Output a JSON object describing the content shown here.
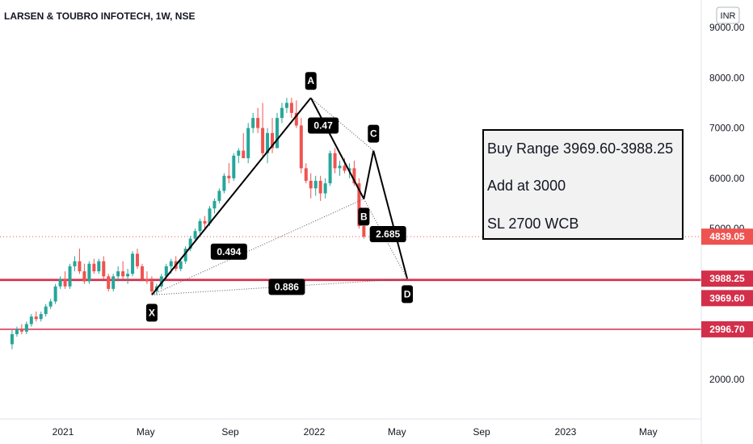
{
  "header": {
    "title": "LARSEN & TOUBRO INFOTECH, 1W, NSE"
  },
  "axis": {
    "currency": "INR"
  },
  "note": {
    "line1": "Buy Range 3969.60-3988.25",
    "line2": "Add at 3000",
    "line3": "SL 2700 WCB"
  },
  "colors": {
    "up": "#26a69a",
    "down": "#ef5350",
    "level_line": "#d32f4a",
    "label_bg": "#000000",
    "last_price_bg": "#ef5350"
  },
  "chart_data": {
    "type": "candlestick",
    "title": "LARSEN & TOUBRO INFOTECH, 1W, NSE",
    "ylim": [
      1000,
      9400
    ],
    "y_ticks": [
      2000,
      3000,
      4000,
      5000,
      6000,
      7000,
      8000,
      9000
    ],
    "y_tick_labels": [
      "2000.00",
      "3000.00",
      "4000.00",
      "5000.00",
      "6000.00",
      "7000.00",
      "8000.00",
      "9000.00"
    ],
    "x_ticks": [
      {
        "label": "2021",
        "date": "2021-01-01"
      },
      {
        "label": "May",
        "date": "2021-05-01"
      },
      {
        "label": "Sep",
        "date": "2021-09-01"
      },
      {
        "label": "2022",
        "date": "2022-01-01"
      },
      {
        "label": "May",
        "date": "2022-05-01"
      },
      {
        "label": "Sep",
        "date": "2022-09-01"
      },
      {
        "label": "2023",
        "date": "2023-01-01"
      },
      {
        "label": "May",
        "date": "2023-05-01"
      }
    ],
    "candle_start_date": "2020-10-19",
    "candle_interval_days": 7,
    "candles": [
      [
        2700,
        2980,
        2600,
        2900
      ],
      [
        2900,
        3050,
        2850,
        3000
      ],
      [
        3000,
        3100,
        2900,
        2950
      ],
      [
        2950,
        3150,
        2900,
        3100
      ],
      [
        3100,
        3300,
        3050,
        3250
      ],
      [
        3250,
        3350,
        3150,
        3200
      ],
      [
        3200,
        3350,
        3150,
        3300
      ],
      [
        3300,
        3500,
        3250,
        3450
      ],
      [
        3450,
        3600,
        3400,
        3550
      ],
      [
        3550,
        3900,
        3500,
        3850
      ],
      [
        3850,
        4050,
        3800,
        4000
      ],
      [
        4000,
        4150,
        3800,
        3850
      ],
      [
        3850,
        4300,
        3800,
        4250
      ],
      [
        4250,
        4450,
        4150,
        4350
      ],
      [
        4350,
        4600,
        4100,
        4150
      ],
      [
        4150,
        4300,
        3900,
        3950
      ],
      [
        3950,
        4350,
        3900,
        4300
      ],
      [
        4300,
        4400,
        4100,
        4150
      ],
      [
        4150,
        4400,
        4100,
        4350
      ],
      [
        4350,
        4450,
        4000,
        4050
      ],
      [
        4050,
        4100,
        3750,
        3800
      ],
      [
        3800,
        4100,
        3750,
        4050
      ],
      [
        4050,
        4250,
        3950,
        4150
      ],
      [
        4150,
        4350,
        4000,
        4050
      ],
      [
        4050,
        4200,
        3900,
        4100
      ],
      [
        4100,
        4550,
        4050,
        4500
      ],
      [
        4500,
        4600,
        4200,
        4250
      ],
      [
        4250,
        4300,
        3950,
        4000
      ],
      [
        4000,
        4150,
        3900,
        3950
      ],
      [
        3950,
        4050,
        3700,
        3750
      ],
      [
        3750,
        3900,
        3680,
        3850
      ],
      [
        3850,
        4100,
        3800,
        4050
      ],
      [
        4050,
        4300,
        4000,
        4250
      ],
      [
        4250,
        4400,
        4100,
        4350
      ],
      [
        4350,
        4450,
        4150,
        4200
      ],
      [
        4200,
        4400,
        4150,
        4350
      ],
      [
        4350,
        4650,
        4300,
        4600
      ],
      [
        4600,
        4850,
        4550,
        4800
      ],
      [
        4800,
        5000,
        4750,
        4950
      ],
      [
        4950,
        5200,
        4900,
        5150
      ],
      [
        5150,
        5250,
        5000,
        5100
      ],
      [
        5100,
        5450,
        5050,
        5400
      ],
      [
        5400,
        5600,
        5300,
        5550
      ],
      [
        5550,
        5800,
        5500,
        5750
      ],
      [
        5750,
        6100,
        5700,
        6050
      ],
      [
        6050,
        6300,
        5900,
        6000
      ],
      [
        6000,
        6500,
        5950,
        6450
      ],
      [
        6450,
        6600,
        6300,
        6550
      ],
      [
        6550,
        6900,
        6400,
        6400
      ],
      [
        6400,
        7100,
        6300,
        7000
      ],
      [
        7000,
        7300,
        6900,
        7200
      ],
      [
        7200,
        7400,
        6900,
        7000
      ],
      [
        7000,
        7500,
        6400,
        6500
      ],
      [
        6500,
        7000,
        6300,
        6900
      ],
      [
        6900,
        7200,
        6500,
        6600
      ],
      [
        6600,
        7300,
        6600,
        7200
      ],
      [
        7200,
        7500,
        7100,
        7400
      ],
      [
        7400,
        7600,
        7300,
        7500
      ],
      [
        7500,
        7600,
        7200,
        7300
      ],
      [
        7300,
        7550,
        7000,
        7050
      ],
      [
        7050,
        7200,
        6100,
        6200
      ],
      [
        6200,
        6300,
        5900,
        5950
      ],
      [
        5950,
        6100,
        5600,
        5800
      ],
      [
        5800,
        6050,
        5650,
        5950
      ],
      [
        5950,
        6050,
        5550,
        5700
      ],
      [
        5700,
        6000,
        5600,
        5900
      ],
      [
        5900,
        6550,
        5850,
        6500
      ],
      [
        6500,
        6600,
        6100,
        6200
      ],
      [
        6200,
        6350,
        6050,
        6250
      ],
      [
        6250,
        6400,
        6100,
        6150
      ],
      [
        6150,
        6300,
        6000,
        6200
      ],
      [
        6200,
        6350,
        5850,
        5900
      ],
      [
        5900,
        6000,
        5000,
        5050
      ],
      [
        5050,
        5200,
        4800,
        4839.05
      ]
    ],
    "pattern": {
      "points": [
        {
          "name": "X",
          "date": "2021-05-10",
          "price": 3680
        },
        {
          "name": "A",
          "date": "2021-12-27",
          "price": 7600
        },
        {
          "name": "B",
          "date": "2022-03-14",
          "price": 5590
        },
        {
          "name": "C",
          "date": "2022-03-28",
          "price": 6550
        },
        {
          "name": "D",
          "date": "2022-05-16",
          "price": 4000
        }
      ],
      "ratios": [
        {
          "label": "0.47",
          "date": "2022-01-14",
          "price": 7050
        },
        {
          "label": "0.494",
          "date": "2021-08-30",
          "price": 4540
        },
        {
          "label": "2.685",
          "date": "2022-04-18",
          "price": 4890
        },
        {
          "label": "0.886",
          "date": "2021-11-22",
          "price": 3840
        }
      ]
    },
    "levels": [
      {
        "label": "3988.25",
        "value": 3988.25
      },
      {
        "label": "3969.60",
        "value": 3969.6
      },
      {
        "label": "2996.70",
        "value": 2996.7
      }
    ],
    "last_price": {
      "label": "4839.05",
      "value": 4839.05
    }
  }
}
